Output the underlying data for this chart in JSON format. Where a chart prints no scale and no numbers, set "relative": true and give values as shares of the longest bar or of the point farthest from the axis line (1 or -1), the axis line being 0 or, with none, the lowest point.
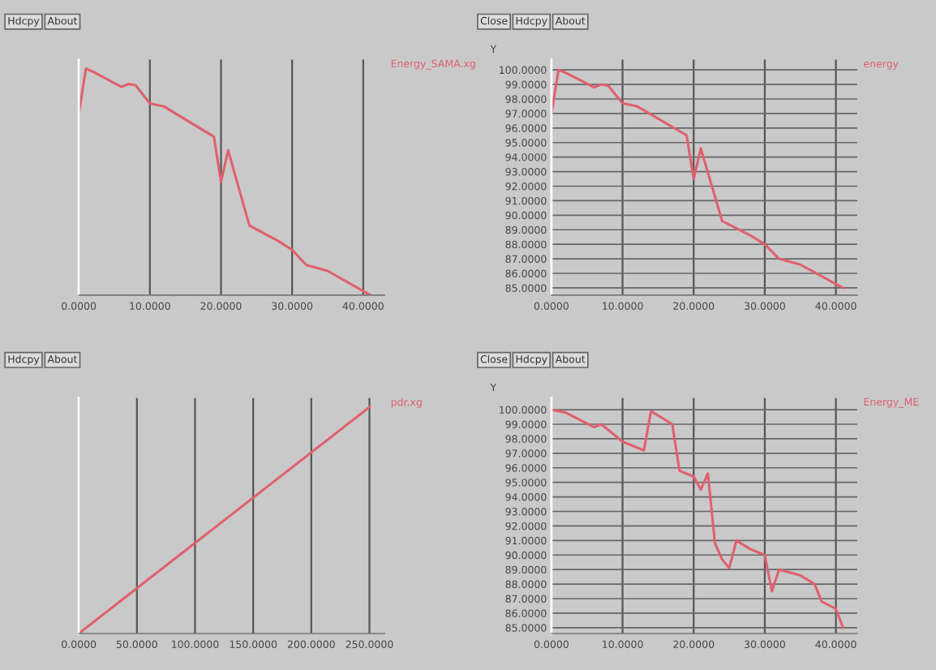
{
  "chart_data": [
    {
      "type": "line",
      "relative": true,
      "grid": "x",
      "legend": false,
      "tick_labels": "x",
      "annotations": [
        "Hdcpy",
        "About"
      ],
      "xlim": [
        0,
        43
      ],
      "xticks": [
        {
          "value": 0,
          "label": "0.0000"
        },
        {
          "value": 10,
          "label": "10.0000"
        },
        {
          "value": 20,
          "label": "20.0000"
        },
        {
          "value": 30,
          "label": "30.0000"
        },
        {
          "value": 40,
          "label": "40.0000"
        }
      ],
      "series": [
        {
          "name": "Energy_SAMA.xg",
          "color": "#e0606e",
          "x": [
            0,
            1,
            2,
            6,
            7,
            8,
            10,
            12,
            19,
            20,
            21,
            24,
            28,
            30,
            32,
            35,
            41
          ],
          "values": [
            0.8,
            1,
            0.987,
            0.92,
            0.933,
            0.927,
            0.847,
            0.833,
            0.7,
            0.5,
            0.64,
            0.307,
            0.24,
            0.2,
            0.133,
            0.107,
            0
          ]
        }
      ]
    },
    {
      "type": "line",
      "grid": true,
      "legend": false,
      "ylabel": "Y",
      "annotations": [
        "Close",
        "Hdcpy",
        "About"
      ],
      "xlim": [
        0,
        43
      ],
      "xticks": [
        {
          "value": 0,
          "label": "0.0000"
        },
        {
          "value": 10,
          "label": "10.0000"
        },
        {
          "value": 20,
          "label": "20.0000"
        },
        {
          "value": 30,
          "label": "30.0000"
        },
        {
          "value": 40,
          "label": "40.0000"
        }
      ],
      "ylim": [
        84.5,
        100.7
      ],
      "yticks": [
        {
          "value": 85,
          "label": "85.0000"
        },
        {
          "value": 86,
          "label": "86.0000"
        },
        {
          "value": 87,
          "label": "87.0000"
        },
        {
          "value": 88,
          "label": "88.0000"
        },
        {
          "value": 89,
          "label": "89.0000"
        },
        {
          "value": 90,
          "label": "90.0000"
        },
        {
          "value": 91,
          "label": "91.0000"
        },
        {
          "value": 92,
          "label": "92.0000"
        },
        {
          "value": 93,
          "label": "93.0000"
        },
        {
          "value": 94,
          "label": "94.0000"
        },
        {
          "value": 95,
          "label": "95.0000"
        },
        {
          "value": 96,
          "label": "96.0000"
        },
        {
          "value": 97,
          "label": "97.0000"
        },
        {
          "value": 98,
          "label": "98.0000"
        },
        {
          "value": 99,
          "label": "99.0000"
        },
        {
          "value": 100,
          "label": "100.0000"
        }
      ],
      "series": [
        {
          "name": "energy",
          "color": "#e0606e",
          "x": [
            0,
            1,
            2,
            6,
            7,
            8,
            10,
            12,
            19,
            20,
            21,
            24,
            28,
            30,
            32,
            35,
            41
          ],
          "values": [
            97,
            100,
            99.8,
            98.8,
            99,
            98.9,
            97.7,
            97.5,
            95.5,
            92.5,
            94.6,
            89.6,
            88.6,
            88,
            87,
            86.6,
            85
          ]
        }
      ]
    },
    {
      "type": "line",
      "relative": true,
      "grid": "x",
      "legend": false,
      "tick_labels": "x",
      "annotations": [
        "Hdcpy",
        "About"
      ],
      "xlim": [
        0,
        263
      ],
      "xticks": [
        {
          "value": 0,
          "label": "0.0000"
        },
        {
          "value": 50,
          "label": "50.0000"
        },
        {
          "value": 100,
          "label": "100.0000"
        },
        {
          "value": 150,
          "label": "150.0000"
        },
        {
          "value": 200,
          "label": "200.0000"
        },
        {
          "value": 250,
          "label": "250.0000"
        }
      ],
      "series": [
        {
          "name": "pdr.xg",
          "color": "#e0606e",
          "x": [
            0,
            250
          ],
          "values": [
            0,
            1
          ]
        }
      ]
    },
    {
      "type": "line",
      "grid": true,
      "legend": false,
      "ylabel": "Y",
      "annotations": [
        "Close",
        "Hdcpy",
        "About"
      ],
      "xlim": [
        0,
        43
      ],
      "xticks": [
        {
          "value": 0,
          "label": "0.0000"
        },
        {
          "value": 10,
          "label": "10.0000"
        },
        {
          "value": 20,
          "label": "20.0000"
        },
        {
          "value": 30,
          "label": "30.0000"
        },
        {
          "value": 40,
          "label": "40.0000"
        }
      ],
      "ylim": [
        84.6,
        100.8
      ],
      "yticks": [
        {
          "value": 85,
          "label": "85.0000"
        },
        {
          "value": 86,
          "label": "86.0000"
        },
        {
          "value": 87,
          "label": "87.0000"
        },
        {
          "value": 88,
          "label": "88.0000"
        },
        {
          "value": 89,
          "label": "89.0000"
        },
        {
          "value": 90,
          "label": "90.0000"
        },
        {
          "value": 91,
          "label": "91.0000"
        },
        {
          "value": 92,
          "label": "92.0000"
        },
        {
          "value": 93,
          "label": "93.0000"
        },
        {
          "value": 94,
          "label": "94.0000"
        },
        {
          "value": 95,
          "label": "95.0000"
        },
        {
          "value": 96,
          "label": "96.0000"
        },
        {
          "value": 97,
          "label": "97.0000"
        },
        {
          "value": 98,
          "label": "98.0000"
        },
        {
          "value": 99,
          "label": "99.0000"
        },
        {
          "value": 100,
          "label": "100.0000"
        }
      ],
      "series": [
        {
          "name": "Energy_ME",
          "color": "#e0606e",
          "x": [
            0,
            2,
            6,
            7,
            10,
            13,
            14,
            17,
            18,
            20,
            21,
            22,
            23,
            24,
            25,
            26,
            28,
            30,
            31,
            32,
            35,
            37,
            38,
            40,
            41
          ],
          "values": [
            100,
            99.8,
            98.8,
            99,
            97.8,
            97.2,
            99.9,
            99,
            95.8,
            95.4,
            94.5,
            95.6,
            90.8,
            89.7,
            89.1,
            91,
            90.4,
            90,
            87.5,
            89,
            88.6,
            88,
            86.8,
            86.3,
            85
          ]
        }
      ]
    }
  ]
}
